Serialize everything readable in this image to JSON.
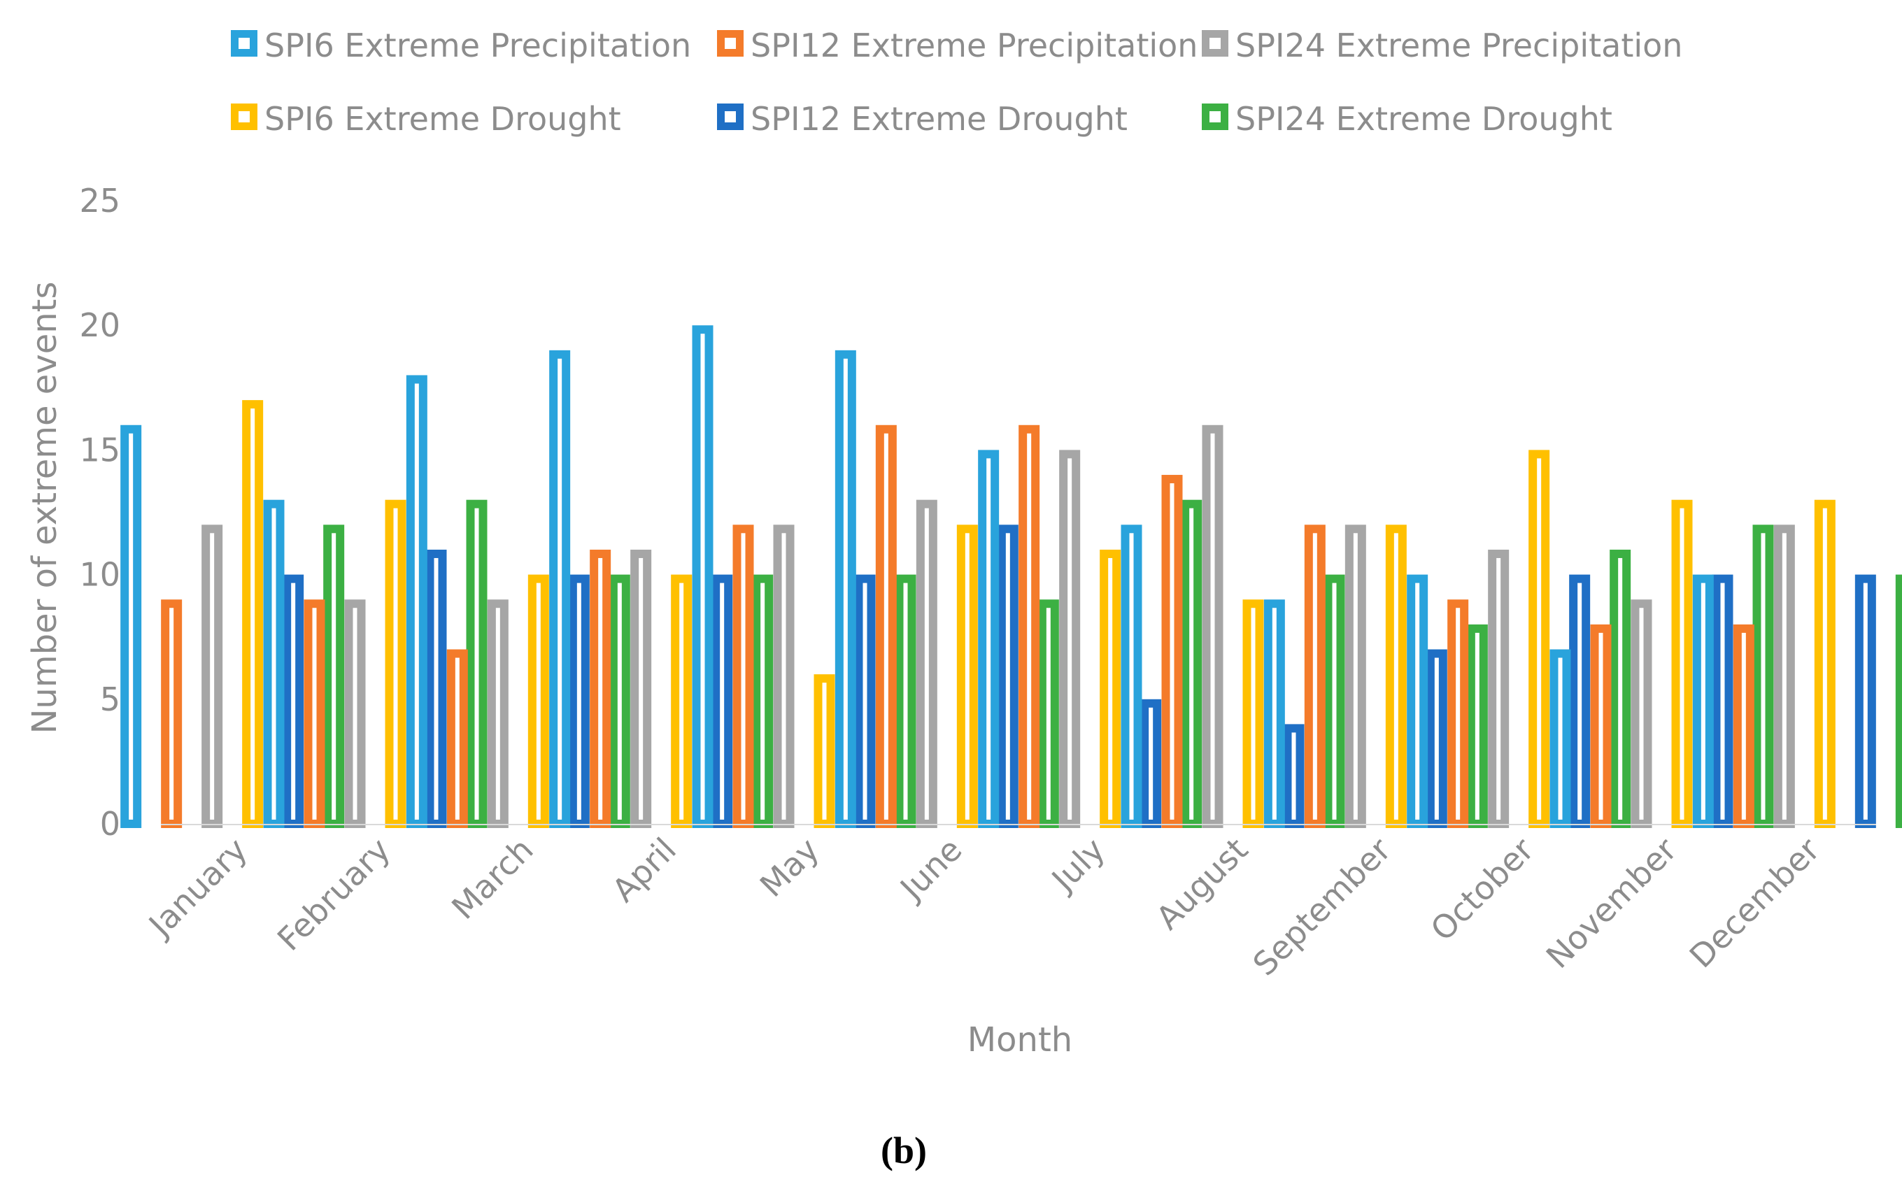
{
  "chart_data": {
    "type": "bar",
    "title": "",
    "xlabel": "Month",
    "ylabel": "Number of extreme events",
    "ylim": [
      0,
      25
    ],
    "yticks": [
      0,
      5,
      10,
      15,
      20,
      25
    ],
    "grid": false,
    "legend_position": "top",
    "caption": "(b)",
    "categories": [
      "January",
      "February",
      "March",
      "April",
      "May",
      "June",
      "July",
      "August",
      "September",
      "October",
      "November",
      "December"
    ],
    "series": [
      {
        "name": "SPI6 Extreme Precipitation",
        "color": "#29a3dc",
        "values": [
          16,
          13,
          18,
          19,
          20,
          19,
          15,
          12,
          9,
          10,
          7,
          10
        ]
      },
      {
        "name": "SPI12 Extreme Precipitation",
        "color": "#f47b2a",
        "values": [
          9,
          9,
          7,
          11,
          12,
          16,
          16,
          14,
          12,
          9,
          8,
          8
        ]
      },
      {
        "name": "SPI24 Extreme Precipitation",
        "color": "#a6a6a6",
        "values": [
          12,
          9,
          9,
          11,
          12,
          13,
          15,
          16,
          12,
          11,
          9,
          12
        ]
      },
      {
        "name": "SPI6 Extreme Drought",
        "color": "#ffc000",
        "values": [
          17,
          13,
          10,
          10,
          6,
          12,
          11,
          9,
          12,
          15,
          13,
          13
        ]
      },
      {
        "name": "SPI12 Extreme Drought",
        "color": "#1f6fc5",
        "values": [
          10,
          11,
          10,
          10,
          10,
          12,
          5,
          4,
          7,
          10,
          10,
          10
        ]
      },
      {
        "name": "SPI24 Extreme Drought",
        "color": "#3cb043",
        "values": [
          12,
          13,
          10,
          10,
          10,
          9,
          13,
          10,
          8,
          11,
          12,
          10
        ]
      }
    ]
  }
}
